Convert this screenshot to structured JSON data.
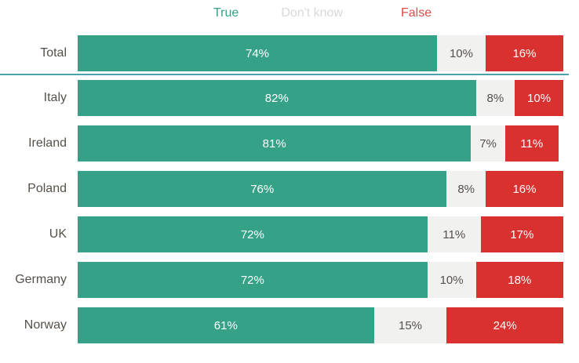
{
  "legend": {
    "items": [
      {
        "label": "True",
        "text_color": "#35a287"
      },
      {
        "label": "Don't know",
        "text_color": "#d9d9d9"
      },
      {
        "label": "False",
        "text_color": "#e14b48"
      }
    ]
  },
  "chart_data": {
    "type": "bar",
    "orientation": "horizontal",
    "stacked": true,
    "unit": "%",
    "value_range": [
      0,
      100
    ],
    "legend_position": "top",
    "categories": [
      "Total",
      "Italy",
      "Ireland",
      "Poland",
      "UK",
      "Germany",
      "Norway"
    ],
    "series": [
      {
        "name": "True",
        "color": "#35a287",
        "label_color": "#ffffff",
        "values": [
          74,
          82,
          81,
          76,
          72,
          72,
          61
        ]
      },
      {
        "name": "Don't know",
        "color": "#f1f1ef",
        "label_color": "#55504b",
        "values": [
          10,
          8,
          7,
          8,
          11,
          10,
          15
        ]
      },
      {
        "name": "False",
        "color": "#d8312f",
        "label_color": "#ffffff",
        "values": [
          16,
          10,
          11,
          16,
          17,
          18,
          24
        ]
      }
    ],
    "separator_after_category": "Total"
  },
  "colors": {
    "background": "#ffffff",
    "separator_line": "#4aa3ab",
    "category_label": "#575049"
  }
}
